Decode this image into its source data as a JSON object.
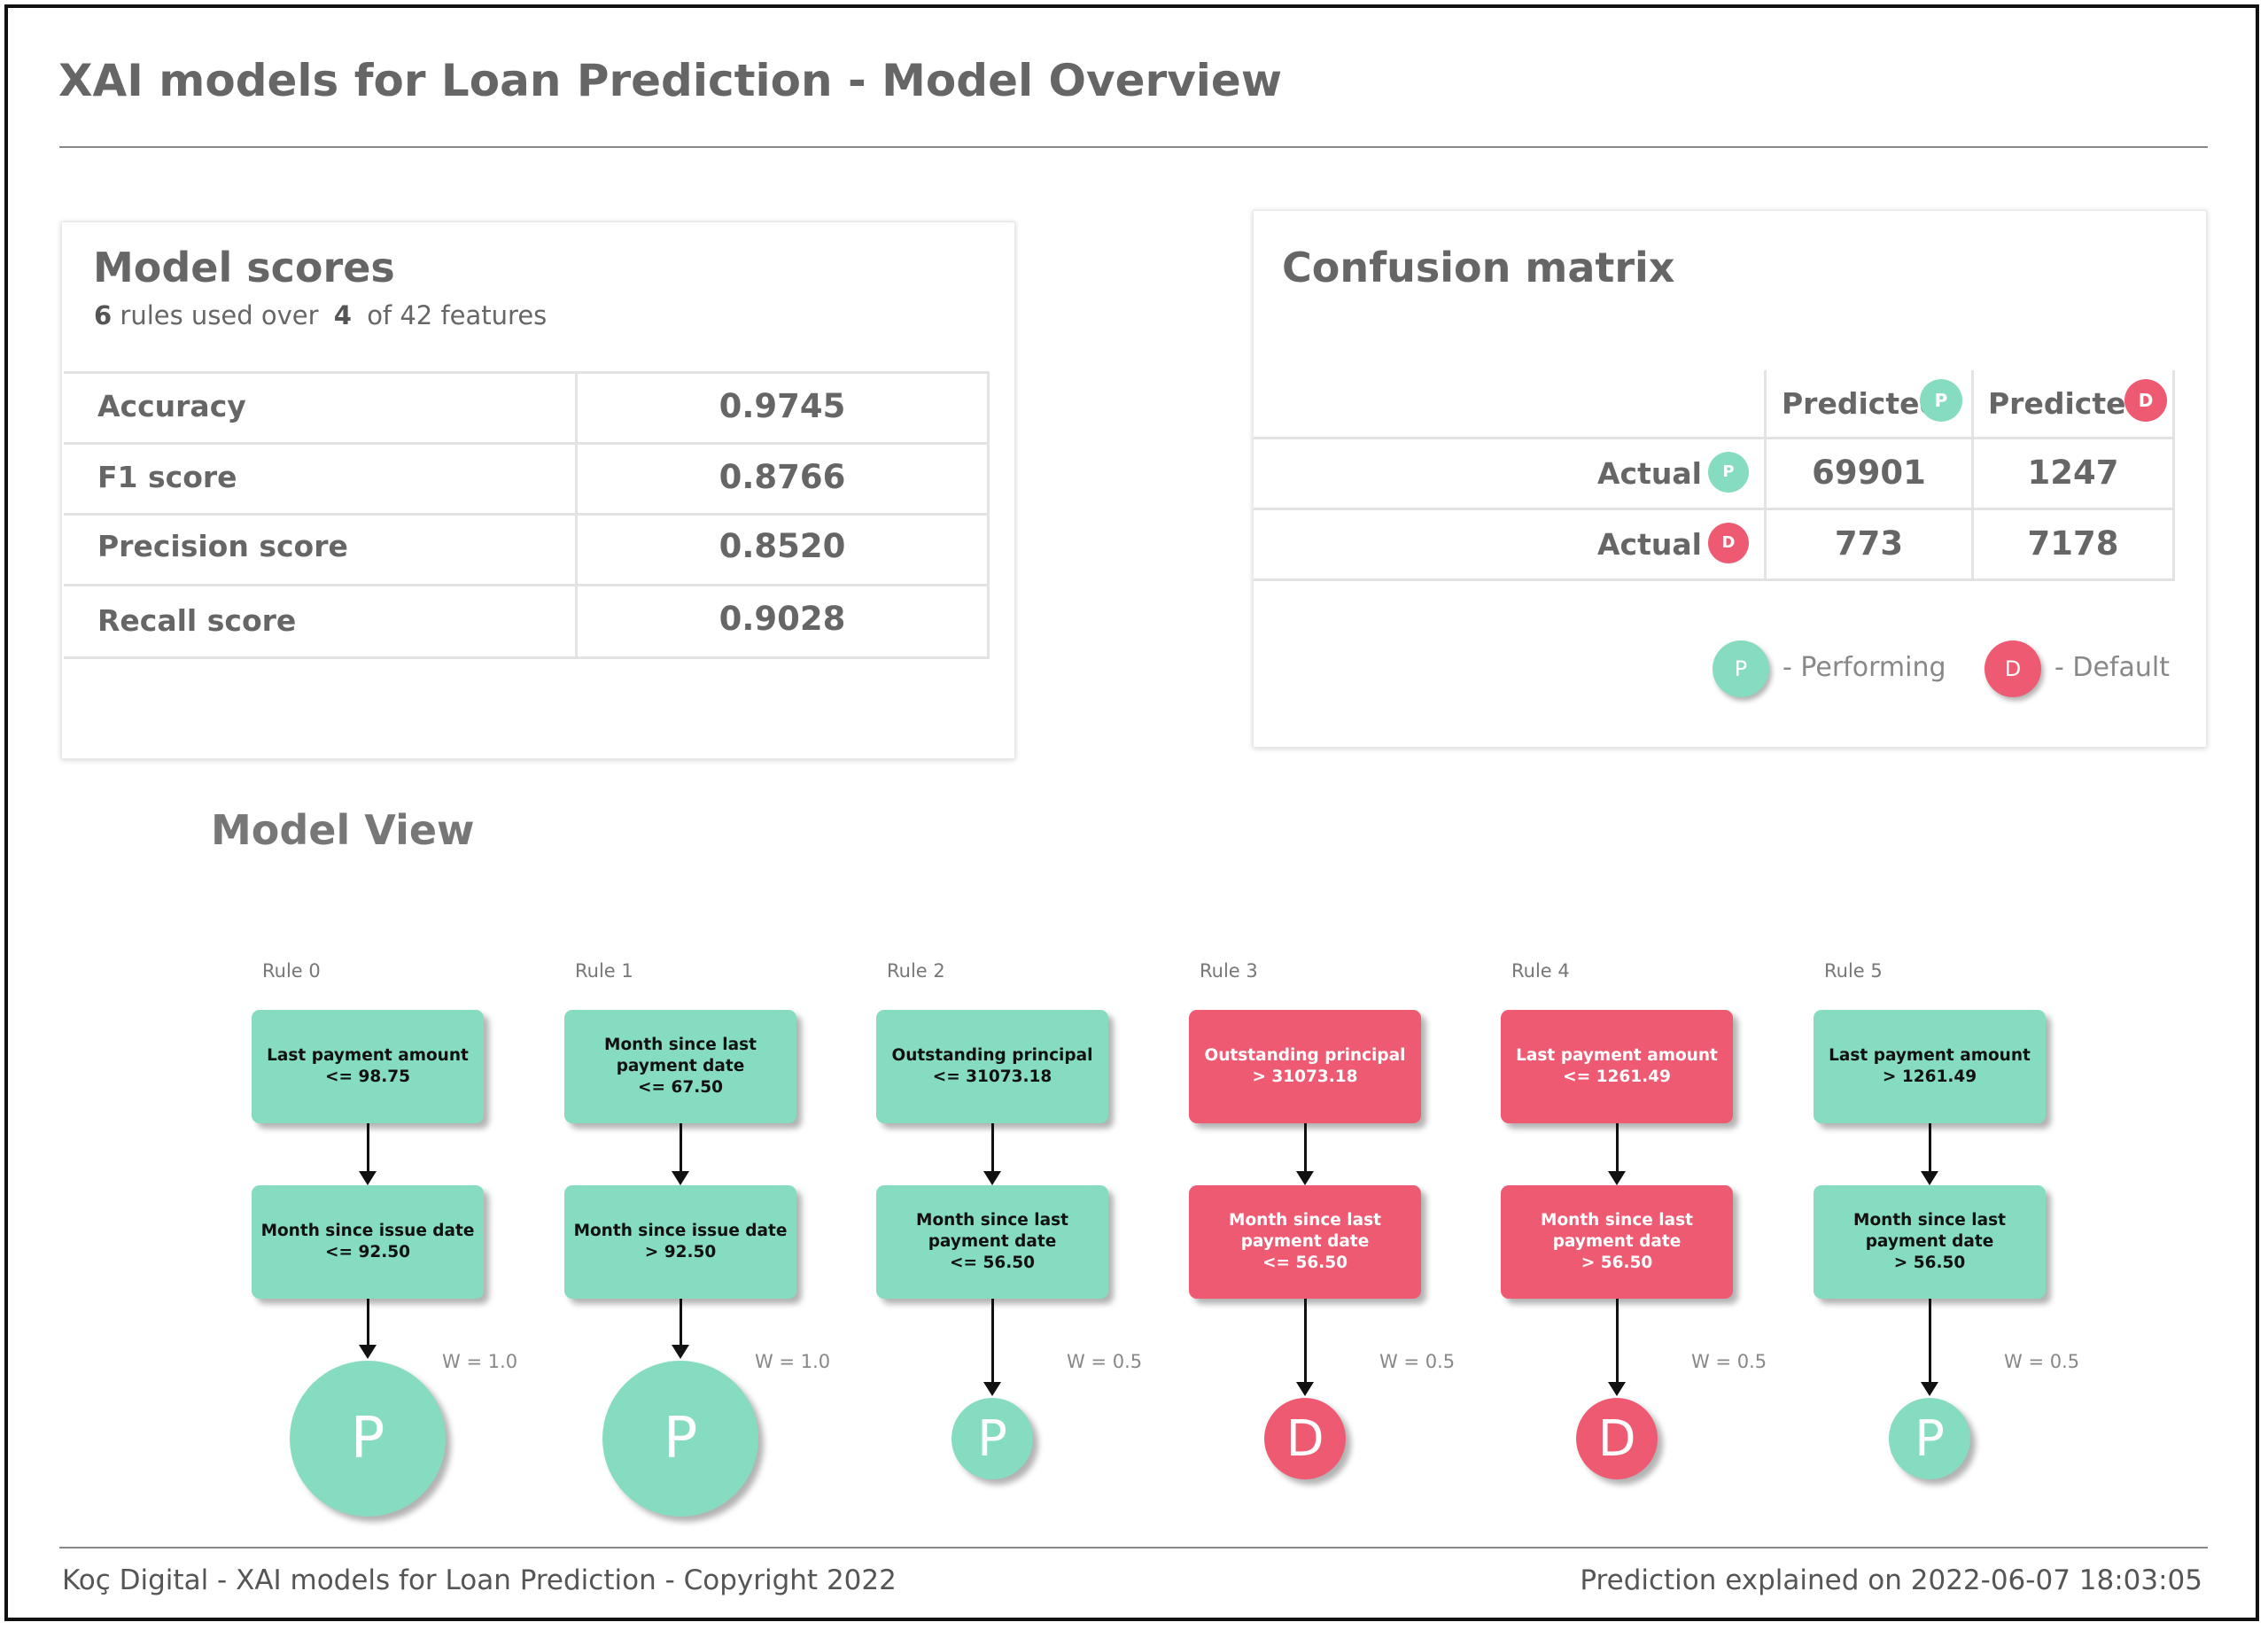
{
  "page": {
    "title": "XAI models for Loan Prediction - Model Overview"
  },
  "model_scores": {
    "title": "Model scores",
    "rules_count": "6",
    "rules_text": "rules used over",
    "features_used": "4",
    "features_text": "of 42 features",
    "rows": [
      {
        "label": "Accuracy",
        "value": "0.9745"
      },
      {
        "label": "F1 score",
        "value": "0.8766"
      },
      {
        "label": "Precision score",
        "value": "0.8520"
      },
      {
        "label": "Recall score",
        "value": "0.9028"
      }
    ]
  },
  "confusion_matrix": {
    "title": "Confusion matrix",
    "col_headers": [
      {
        "label": "Predicted",
        "badge": "P"
      },
      {
        "label": "Predicted",
        "badge": "D"
      }
    ],
    "rows": [
      {
        "label": "Actual -",
        "badge": "P",
        "values": [
          "69901",
          "1247"
        ]
      },
      {
        "label": "Actual -",
        "badge": "D",
        "values": [
          "773",
          "7178"
        ]
      }
    ],
    "legend": [
      {
        "badge": "P",
        "text": "- Performing"
      },
      {
        "badge": "D",
        "text": "- Default"
      }
    ]
  },
  "model_view": {
    "title": "Model View",
    "rules": [
      {
        "label": "Rule 0",
        "class": "P",
        "node1": [
          "Last payment amount",
          "<= 98.75"
        ],
        "node2": [
          "Month since issue date",
          "<= 92.50"
        ],
        "weight": "W = 1.0",
        "leaf": "P"
      },
      {
        "label": "Rule 1",
        "class": "P",
        "node1": [
          "Month since last",
          "payment date",
          "<= 67.50"
        ],
        "node2": [
          "Month since issue date",
          "> 92.50"
        ],
        "weight": "W = 1.0",
        "leaf": "P"
      },
      {
        "label": "Rule 2",
        "class": "P",
        "node1": [
          "Outstanding principal",
          "<= 31073.18"
        ],
        "node2": [
          "Month since last",
          "payment date",
          "<= 56.50"
        ],
        "weight": "W = 0.5",
        "leaf": "P"
      },
      {
        "label": "Rule 3",
        "class": "D",
        "node1": [
          "Outstanding principal",
          "> 31073.18"
        ],
        "node2": [
          "Month since last",
          "payment date",
          "<= 56.50"
        ],
        "weight": "W = 0.5",
        "leaf": "D"
      },
      {
        "label": "Rule 4",
        "class": "D",
        "node1": [
          "Last payment amount",
          "<= 1261.49"
        ],
        "node2": [
          "Month since last",
          "payment date",
          "> 56.50"
        ],
        "weight": "W = 0.5",
        "leaf": "D"
      },
      {
        "label": "Rule 5",
        "class": "P",
        "node1": [
          "Last payment amount",
          "> 1261.49"
        ],
        "node2": [
          "Month since last",
          "payment date",
          "> 56.50"
        ],
        "weight": "W = 0.5",
        "leaf": "P"
      }
    ]
  },
  "footer": {
    "left": "Koç Digital  - XAI models for Loan Prediction - Copyright 2022",
    "right": "Prediction explained on 2022-06-07 18:03:05"
  },
  "colors": {
    "performing": "#86dcc0",
    "default": "#ef5a73"
  }
}
